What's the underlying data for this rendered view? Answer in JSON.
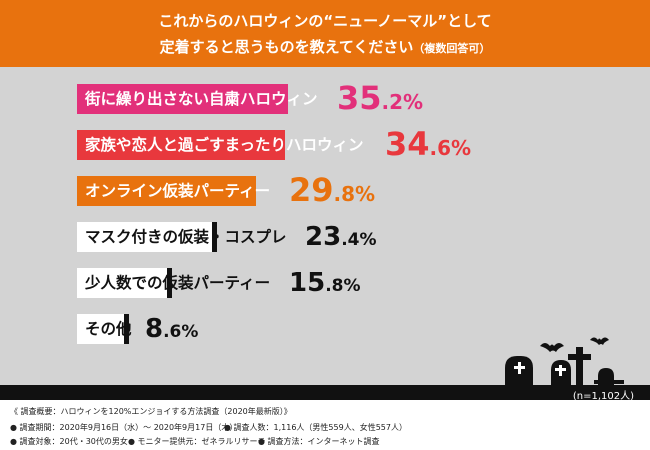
{
  "header": {
    "line1": "これからのハロウィンの“ニューノーマル”として",
    "line2": "定着すると思うものを教えてください",
    "line2_note": "（複数回答可）"
  },
  "chart_data": {
    "type": "bar",
    "orientation": "horizontal",
    "categories": [
      "街に繰り出さない自粛ハロウィン",
      "家族や恋人と過ごすまったりハロウィン",
      "オンライン仮装パーティー",
      "マスク付きの仮装・コスプレ",
      "少人数での仮装パーティー",
      "その他"
    ],
    "values": [
      35.2,
      34.6,
      29.8,
      23.4,
      15.8,
      8.6
    ],
    "value_labels": [
      {
        "int": "35",
        "dec": ".2%"
      },
      {
        "int": "34",
        "dec": ".6%"
      },
      {
        "int": "29",
        "dec": ".8%"
      },
      {
        "int": "23",
        "dec": ".4%"
      },
      {
        "int": "15",
        "dec": ".8%"
      },
      {
        "int": "8",
        "dec": ".6%"
      }
    ],
    "bar_colors": [
      "#E2307A",
      "#E8383D",
      "#E8720E",
      "#FFFFFF",
      "#FFFFFF",
      "#FFFFFF"
    ],
    "pct_colors": [
      "#E2307A",
      "#E8383D",
      "#E8720E",
      "#111111",
      "#111111",
      "#111111"
    ],
    "n_note": "(n=1,102人)"
  },
  "footer": {
    "line1": "《 調査概要：ハロウィンを120%エンジョイする方法調査（2020年最新版）》",
    "period": "● 調査期間：2020年9月16日（水）～ 2020年9月17日（木）",
    "people": "● 調査人数：1,116人（男性559人、女性557人）",
    "target": "● 調査対象：20代・30代の男女",
    "monitor": "● モニター提供元：ゼネラルリサーチ",
    "method": "● 調査方法：インターネット調査"
  }
}
